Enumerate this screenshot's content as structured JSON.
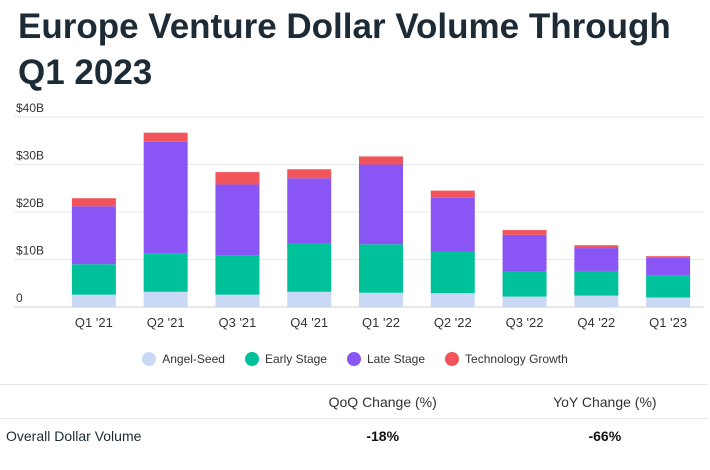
{
  "title": "Europe Venture Dollar Volume Through Q1 2023",
  "chart_data": {
    "type": "bar",
    "stacked": true,
    "title": "Europe Venture Dollar Volume Through Q1 2023",
    "categories": [
      "Q1 '21",
      "Q2 '21",
      "Q3 '21",
      "Q4 '21",
      "Q1 '22",
      "Q2 '22",
      "Q3 '22",
      "Q4 '22",
      "Q1 '23"
    ],
    "series": [
      {
        "name": "Angel-Seed",
        "color": "#c9d9f5",
        "values": [
          2.6,
          3.2,
          2.6,
          3.2,
          3.0,
          2.9,
          2.2,
          2.4,
          2.0
        ]
      },
      {
        "name": "Early Stage",
        "color": "#00c29a",
        "values": [
          6.4,
          8.1,
          8.2,
          10.1,
          10.2,
          8.7,
          5.2,
          5.2,
          4.6
        ]
      },
      {
        "name": "Late Stage",
        "color": "#8a55f5",
        "values": [
          12.2,
          23.5,
          15.0,
          13.8,
          16.8,
          11.4,
          7.8,
          4.8,
          3.8
        ]
      },
      {
        "name": "Technology Growth",
        "color": "#f2545b",
        "values": [
          1.7,
          1.9,
          2.6,
          1.9,
          1.7,
          1.5,
          1.0,
          0.6,
          0.3
        ]
      }
    ],
    "yticks": [
      "0",
      "$10B",
      "$20B",
      "$30B",
      "$40B"
    ],
    "ylim": [
      0,
      40
    ],
    "grid": true,
    "legend": "bottom"
  },
  "table": {
    "headers": [
      "",
      "QoQ Change (%)",
      "YoY Change (%)"
    ],
    "rows": [
      {
        "label": "Overall Dollar Volume",
        "qoq": "-18%",
        "yoy": "-66%"
      }
    ]
  }
}
